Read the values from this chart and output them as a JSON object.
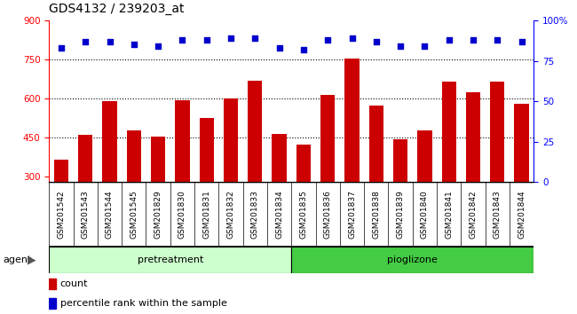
{
  "title": "GDS4132 / 239203_at",
  "samples": [
    "GSM201542",
    "GSM201543",
    "GSM201544",
    "GSM201545",
    "GSM201829",
    "GSM201830",
    "GSM201831",
    "GSM201832",
    "GSM201833",
    "GSM201834",
    "GSM201835",
    "GSM201836",
    "GSM201837",
    "GSM201838",
    "GSM201839",
    "GSM201840",
    "GSM201841",
    "GSM201842",
    "GSM201843",
    "GSM201844"
  ],
  "counts": [
    365,
    460,
    590,
    480,
    455,
    595,
    525,
    600,
    670,
    465,
    425,
    615,
    755,
    575,
    445,
    480,
    665,
    625,
    665,
    580
  ],
  "percentile_ranks": [
    83,
    87,
    87,
    85,
    84,
    88,
    88,
    89,
    89,
    83,
    82,
    88,
    89,
    87,
    84,
    84,
    88,
    88,
    88,
    87
  ],
  "pretreatment_count": 10,
  "pioglizone_count": 10,
  "bar_color": "#cc0000",
  "dot_color": "#0000cc",
  "ylim_left": [
    280,
    900
  ],
  "ylim_right": [
    0,
    100
  ],
  "yticks_left": [
    300,
    450,
    600,
    750,
    900
  ],
  "yticks_right": [
    0,
    25,
    50,
    75,
    100
  ],
  "grid_values": [
    450,
    600,
    750
  ],
  "bar_width": 0.6,
  "plot_bg_color": "#ffffff",
  "label_bg_color": "#cccccc",
  "group_color_pretreatment": "#ccffcc",
  "group_color_pioglizone": "#44cc44",
  "group_label_pretreatment": "pretreatment",
  "group_label_pioglizone": "pioglizone",
  "agent_label": "agent",
  "legend_count": "count",
  "legend_percentile": "percentile rank within the sample",
  "title_fontsize": 10,
  "tick_fontsize": 7.5,
  "label_fontsize": 6.5,
  "group_fontsize": 8
}
